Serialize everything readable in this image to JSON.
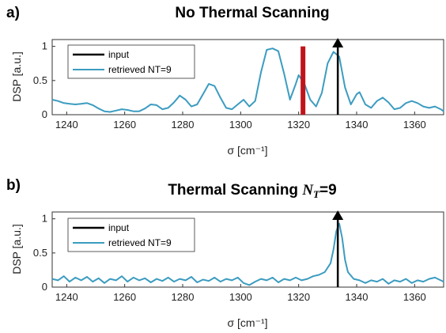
{
  "chart_data": [
    {
      "type": "line",
      "panel_label": "a)",
      "title": "No Thermal Scanning",
      "title_suffix": "",
      "xlabel": "σ [cm⁻¹]",
      "ylabel": "DSP [a.u.]",
      "xlim": [
        1235,
        1370
      ],
      "ylim": [
        0,
        1.1
      ],
      "xticks": [
        1240,
        1260,
        1280,
        1300,
        1320,
        1340,
        1360
      ],
      "yticks": [
        0,
        0.5,
        1
      ],
      "grid": false,
      "legend_position": "top-left",
      "legend": [
        "input",
        "retrieved NT=9"
      ],
      "series": [
        {
          "name": "retrieved NT=9",
          "color": "#3c9cc0",
          "points": [
            [
              1235,
              0.22
            ],
            [
              1237,
              0.2
            ],
            [
              1239,
              0.17
            ],
            [
              1241,
              0.16
            ],
            [
              1243,
              0.15
            ],
            [
              1245,
              0.16
            ],
            [
              1247,
              0.17
            ],
            [
              1249,
              0.14
            ],
            [
              1251,
              0.09
            ],
            [
              1253,
              0.05
            ],
            [
              1255,
              0.04
            ],
            [
              1257,
              0.06
            ],
            [
              1259,
              0.08
            ],
            [
              1261,
              0.07
            ],
            [
              1263,
              0.05
            ],
            [
              1265,
              0.05
            ],
            [
              1267,
              0.09
            ],
            [
              1269,
              0.15
            ],
            [
              1271,
              0.14
            ],
            [
              1273,
              0.08
            ],
            [
              1275,
              0.1
            ],
            [
              1277,
              0.18
            ],
            [
              1279,
              0.28
            ],
            [
              1281,
              0.22
            ],
            [
              1283,
              0.12
            ],
            [
              1285,
              0.15
            ],
            [
              1287,
              0.3
            ],
            [
              1289,
              0.45
            ],
            [
              1291,
              0.42
            ],
            [
              1293,
              0.25
            ],
            [
              1295,
              0.1
            ],
            [
              1297,
              0.08
            ],
            [
              1299,
              0.15
            ],
            [
              1301,
              0.22
            ],
            [
              1303,
              0.12
            ],
            [
              1305,
              0.2
            ],
            [
              1307,
              0.62
            ],
            [
              1309,
              0.95
            ],
            [
              1311,
              0.97
            ],
            [
              1313,
              0.93
            ],
            [
              1315,
              0.6
            ],
            [
              1317,
              0.22
            ],
            [
              1319,
              0.45
            ],
            [
              1320,
              0.58
            ],
            [
              1322,
              0.45
            ],
            [
              1324,
              0.22
            ],
            [
              1326,
              0.12
            ],
            [
              1328,
              0.32
            ],
            [
              1330,
              0.75
            ],
            [
              1332,
              0.92
            ],
            [
              1334,
              0.85
            ],
            [
              1336,
              0.4
            ],
            [
              1338,
              0.15
            ],
            [
              1340,
              0.3
            ],
            [
              1341,
              0.33
            ],
            [
              1343,
              0.15
            ],
            [
              1345,
              0.1
            ],
            [
              1347,
              0.2
            ],
            [
              1349,
              0.25
            ],
            [
              1351,
              0.18
            ],
            [
              1353,
              0.08
            ],
            [
              1355,
              0.1
            ],
            [
              1357,
              0.17
            ],
            [
              1359,
              0.2
            ],
            [
              1361,
              0.17
            ],
            [
              1363,
              0.12
            ],
            [
              1365,
              0.1
            ],
            [
              1367,
              0.12
            ],
            [
              1369,
              0.08
            ],
            [
              1370,
              0.05
            ]
          ]
        }
      ],
      "input_marker": {
        "label": "input",
        "x": 1333.5,
        "height": 1.1,
        "color": "#000000"
      },
      "highlight_bar": {
        "x": 1321.5,
        "height": 1.0,
        "color": "#c0141a"
      }
    },
    {
      "type": "line",
      "panel_label": "b)",
      "title": "Thermal Scanning ",
      "title_math": "N",
      "title_math_sub": "T",
      "title_suffix": "=9",
      "xlabel": "σ [cm⁻¹]",
      "ylabel": "DSP [a.u.]",
      "xlim": [
        1235,
        1370
      ],
      "ylim": [
        0,
        1.1
      ],
      "xticks": [
        1240,
        1260,
        1280,
        1300,
        1320,
        1340,
        1360
      ],
      "yticks": [
        0,
        0.5,
        1
      ],
      "grid": false,
      "legend_position": "top-left",
      "legend": [
        "input",
        "retrieved NT=9"
      ],
      "series": [
        {
          "name": "retrieved NT=9",
          "color": "#3c9cc0",
          "points": [
            [
              1235,
              0.12
            ],
            [
              1237,
              0.1
            ],
            [
              1239,
              0.16
            ],
            [
              1241,
              0.08
            ],
            [
              1243,
              0.14
            ],
            [
              1245,
              0.1
            ],
            [
              1247,
              0.15
            ],
            [
              1249,
              0.08
            ],
            [
              1251,
              0.13
            ],
            [
              1253,
              0.06
            ],
            [
              1255,
              0.12
            ],
            [
              1257,
              0.1
            ],
            [
              1259,
              0.16
            ],
            [
              1261,
              0.08
            ],
            [
              1263,
              0.14
            ],
            [
              1265,
              0.1
            ],
            [
              1267,
              0.13
            ],
            [
              1269,
              0.07
            ],
            [
              1271,
              0.12
            ],
            [
              1273,
              0.09
            ],
            [
              1275,
              0.14
            ],
            [
              1277,
              0.08
            ],
            [
              1279,
              0.12
            ],
            [
              1281,
              0.1
            ],
            [
              1283,
              0.15
            ],
            [
              1285,
              0.07
            ],
            [
              1287,
              0.11
            ],
            [
              1289,
              0.09
            ],
            [
              1291,
              0.14
            ],
            [
              1293,
              0.08
            ],
            [
              1295,
              0.12
            ],
            [
              1297,
              0.1
            ],
            [
              1299,
              0.14
            ],
            [
              1301,
              0.06
            ],
            [
              1303,
              0.03
            ],
            [
              1305,
              0.08
            ],
            [
              1307,
              0.12
            ],
            [
              1309,
              0.1
            ],
            [
              1311,
              0.14
            ],
            [
              1313,
              0.07
            ],
            [
              1315,
              0.12
            ],
            [
              1317,
              0.1
            ],
            [
              1319,
              0.14
            ],
            [
              1321,
              0.1
            ],
            [
              1323,
              0.12
            ],
            [
              1325,
              0.16
            ],
            [
              1327,
              0.18
            ],
            [
              1329,
              0.22
            ],
            [
              1331,
              0.35
            ],
            [
              1332,
              0.55
            ],
            [
              1333,
              0.82
            ],
            [
              1334,
              0.93
            ],
            [
              1335,
              0.72
            ],
            [
              1336,
              0.4
            ],
            [
              1337,
              0.22
            ],
            [
              1339,
              0.12
            ],
            [
              1341,
              0.1
            ],
            [
              1343,
              0.06
            ],
            [
              1345,
              0.1
            ],
            [
              1347,
              0.08
            ],
            [
              1349,
              0.12
            ],
            [
              1351,
              0.05
            ],
            [
              1353,
              0.1
            ],
            [
              1355,
              0.08
            ],
            [
              1357,
              0.12
            ],
            [
              1359,
              0.06
            ],
            [
              1361,
              0.1
            ],
            [
              1363,
              0.08
            ],
            [
              1365,
              0.12
            ],
            [
              1367,
              0.14
            ],
            [
              1369,
              0.1
            ],
            [
              1370,
              0.08
            ]
          ]
        }
      ],
      "input_marker": {
        "label": "input",
        "x": 1333.5,
        "height": 1.1,
        "color": "#000000"
      }
    }
  ]
}
